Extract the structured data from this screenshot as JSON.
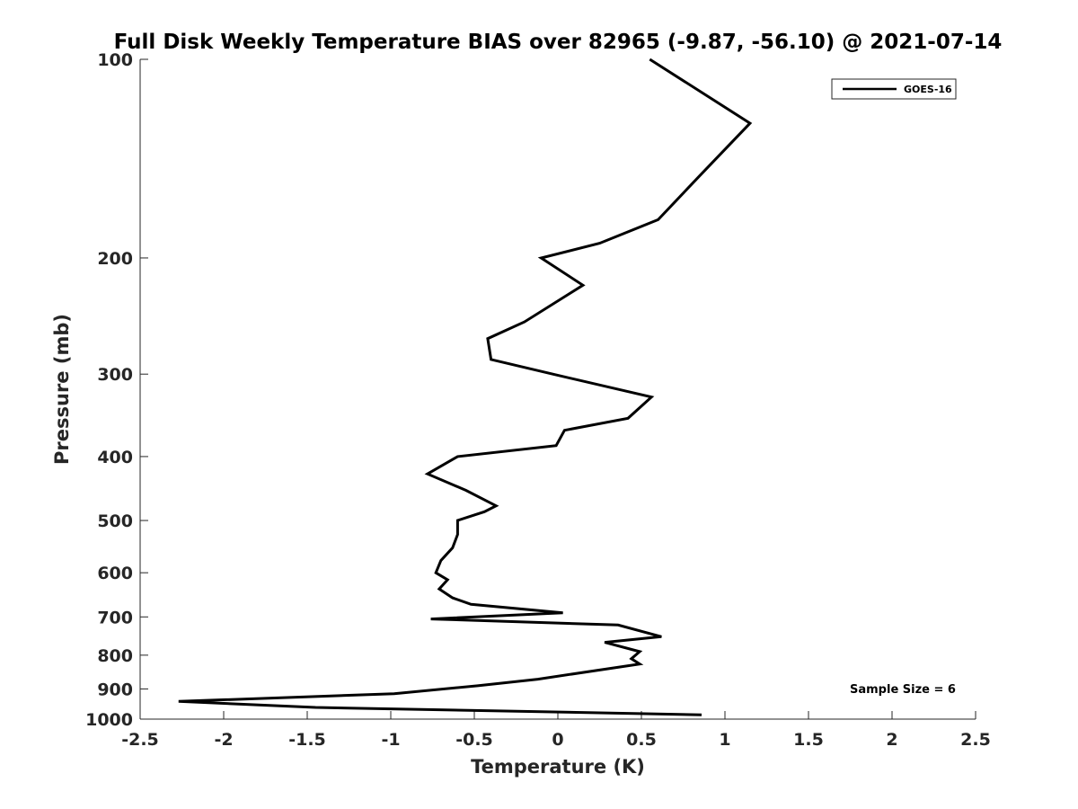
{
  "chart_data": {
    "type": "line",
    "title": "Full Disk Weekly Temperature BIAS over 82965 (-9.87, -56.10) @ 2021-07-14",
    "xlabel": "Temperature (K)",
    "ylabel": "Pressure (mb)",
    "xlim": [
      -2.5,
      2.5
    ],
    "ylim": [
      100,
      1000
    ],
    "y_scale": "log",
    "y_reversed": true,
    "grid": false,
    "legend_position": "top-right",
    "x_ticks": [
      "-2.5",
      "-2",
      "-1.5",
      "-1",
      "-0.5",
      "0",
      "0.5",
      "1",
      "1.5",
      "2",
      "2.5"
    ],
    "y_ticks": [
      "100",
      "200",
      "300",
      "400",
      "500",
      "600",
      "700",
      "800",
      "900",
      "1000"
    ],
    "annotation": "Sample Size = 6",
    "series": [
      {
        "name": "GOES-16",
        "color": "#000000",
        "points": [
          {
            "x": 0.55,
            "y": 100
          },
          {
            "x": 1.15,
            "y": 125
          },
          {
            "x": 0.85,
            "y": 150
          },
          {
            "x": 0.6,
            "y": 175
          },
          {
            "x": 0.25,
            "y": 190
          },
          {
            "x": -0.1,
            "y": 200
          },
          {
            "x": 0.15,
            "y": 220
          },
          {
            "x": -0.2,
            "y": 250
          },
          {
            "x": -0.42,
            "y": 265
          },
          {
            "x": -0.4,
            "y": 285
          },
          {
            "x": -0.03,
            "y": 300
          },
          {
            "x": 0.56,
            "y": 325
          },
          {
            "x": 0.42,
            "y": 350
          },
          {
            "x": 0.04,
            "y": 365
          },
          {
            "x": -0.01,
            "y": 385
          },
          {
            "x": -0.6,
            "y": 400
          },
          {
            "x": -0.78,
            "y": 425
          },
          {
            "x": -0.55,
            "y": 450
          },
          {
            "x": -0.37,
            "y": 475
          },
          {
            "x": -0.44,
            "y": 485
          },
          {
            "x": -0.6,
            "y": 500
          },
          {
            "x": -0.6,
            "y": 525
          },
          {
            "x": -0.63,
            "y": 550
          },
          {
            "x": -0.7,
            "y": 575
          },
          {
            "x": -0.73,
            "y": 600
          },
          {
            "x": -0.66,
            "y": 615
          },
          {
            "x": -0.71,
            "y": 635
          },
          {
            "x": -0.63,
            "y": 655
          },
          {
            "x": -0.52,
            "y": 670
          },
          {
            "x": 0.03,
            "y": 690
          },
          {
            "x": -0.76,
            "y": 705
          },
          {
            "x": 0.36,
            "y": 720
          },
          {
            "x": 0.62,
            "y": 750
          },
          {
            "x": 0.28,
            "y": 765
          },
          {
            "x": 0.49,
            "y": 790
          },
          {
            "x": 0.44,
            "y": 810
          },
          {
            "x": 0.49,
            "y": 825
          },
          {
            "x": -0.12,
            "y": 870
          },
          {
            "x": -0.48,
            "y": 890
          },
          {
            "x": -0.98,
            "y": 915
          },
          {
            "x": -2.27,
            "y": 940
          },
          {
            "x": -1.45,
            "y": 960
          },
          {
            "x": 0.86,
            "y": 985
          }
        ]
      }
    ]
  }
}
